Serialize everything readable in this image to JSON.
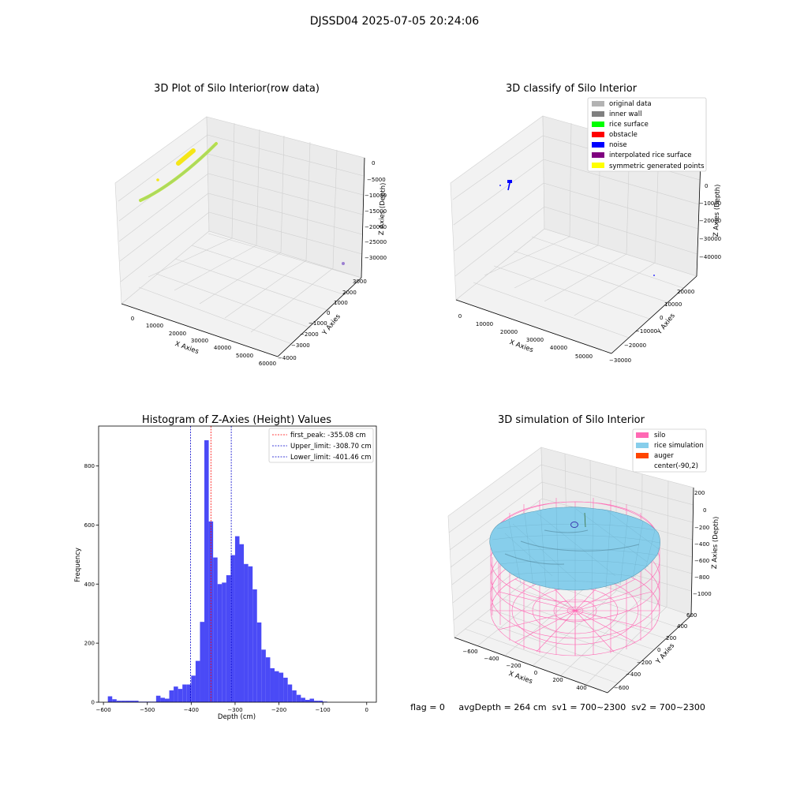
{
  "figure": {
    "suptitle": "DJSSD04 2025-07-05 20:24:06",
    "footer": "flag = 0     avgDepth = 264 cm  sv1 = 700~2300  sv2 = 700~2300"
  },
  "chart_data": [
    {
      "type": "scatter",
      "title": "3D Plot of Silo Interior(row data)",
      "xlabel": "X Axies",
      "ylabel": "Y Axies",
      "zlabel": "Z Axies (Depth)",
      "x_ticks": [
        "0",
        "10000",
        "20000",
        "30000",
        "40000",
        "50000",
        "60000"
      ],
      "y_ticks": [
        "3000",
        "2000",
        "1000",
        "0",
        "−1000",
        "−2000",
        "−3000",
        "−4000"
      ],
      "z_ticks": [
        "0",
        "−5000",
        "−10000",
        "−15000",
        "−20000",
        "−25000",
        "−30000"
      ],
      "colors": {
        "band": "#b8e04a",
        "band_dark": "#9ad07a",
        "cluster": "#f5e617",
        "outlier": "#9b7fd1"
      }
    },
    {
      "type": "scatter",
      "title": "3D classify of Silo Interior",
      "xlabel": "X Axies",
      "ylabel": "Y Axies",
      "zlabel": "Z Axies (Depth)",
      "x_ticks": [
        "0",
        "10000",
        "20000",
        "30000",
        "40000",
        "50000"
      ],
      "y_ticks": [
        "20000",
        "10000",
        "0",
        "−10000",
        "−20000",
        "−30000"
      ],
      "z_ticks": [
        "0",
        "−10000",
        "−20000",
        "−30000",
        "−40000"
      ],
      "legend": [
        {
          "label": "original data",
          "color": "#b3b3b3"
        },
        {
          "label": "inner wall",
          "color": "#808080"
        },
        {
          "label": "rice surface",
          "color": "#00ff00"
        },
        {
          "label": "obstacle",
          "color": "#ff0000"
        },
        {
          "label": "noise",
          "color": "#0000ff"
        },
        {
          "label": "interpolated rice surface",
          "color": "#800080"
        },
        {
          "label": "symmetric generated points",
          "color": "#ffff00"
        }
      ]
    },
    {
      "type": "bar",
      "title": "Histogram of Z-Axies (Height) Values",
      "xlabel": "Depth (cm)",
      "ylabel": "Frequency",
      "xlim": [
        -611,
        22
      ],
      "ylim": [
        0,
        935
      ],
      "x_ticks": [
        -600,
        -500,
        -400,
        -300,
        -200,
        -100,
        0
      ],
      "y_ticks": [
        0,
        200,
        400,
        600,
        800
      ],
      "bar_color": "#4a4af6",
      "bins": [
        [
          -590,
          -580,
          20
        ],
        [
          -580,
          -570,
          10
        ],
        [
          -570,
          -560,
          5
        ],
        [
          -560,
          -550,
          5
        ],
        [
          -550,
          -540,
          5
        ],
        [
          -540,
          -530,
          5
        ],
        [
          -530,
          -520,
          5
        ],
        [
          -520,
          -510,
          2
        ],
        [
          -510,
          -500,
          2
        ],
        [
          -500,
          -490,
          2
        ],
        [
          -490,
          -480,
          2
        ],
        [
          -480,
          -470,
          22
        ],
        [
          -470,
          -460,
          15
        ],
        [
          -460,
          -450,
          12
        ],
        [
          -450,
          -440,
          40
        ],
        [
          -440,
          -430,
          53
        ],
        [
          -430,
          -420,
          45
        ],
        [
          -420,
          -410,
          60
        ],
        [
          -410,
          -400,
          60
        ],
        [
          -400,
          -390,
          90
        ],
        [
          -390,
          -380,
          140
        ],
        [
          -380,
          -370,
          272
        ],
        [
          -370,
          -360,
          887
        ],
        [
          -360,
          -350,
          612
        ],
        [
          -350,
          -340,
          490
        ],
        [
          -340,
          -330,
          400
        ],
        [
          -330,
          -320,
          405
        ],
        [
          -320,
          -310,
          430
        ],
        [
          -310,
          -300,
          498
        ],
        [
          -300,
          -290,
          562
        ],
        [
          -290,
          -280,
          535
        ],
        [
          -280,
          -270,
          468
        ],
        [
          -270,
          -260,
          460
        ],
        [
          -260,
          -250,
          382
        ],
        [
          -250,
          -240,
          270
        ],
        [
          -240,
          -230,
          178
        ],
        [
          -230,
          -220,
          152
        ],
        [
          -220,
          -210,
          115
        ],
        [
          -210,
          -200,
          105
        ],
        [
          -200,
          -190,
          100
        ],
        [
          -190,
          -180,
          83
        ],
        [
          -180,
          -170,
          60
        ],
        [
          -170,
          -160,
          40
        ],
        [
          -160,
          -150,
          25
        ],
        [
          -150,
          -140,
          15
        ],
        [
          -140,
          -130,
          8
        ],
        [
          -130,
          -120,
          12
        ],
        [
          -120,
          -110,
          5
        ],
        [
          -110,
          -100,
          5
        ],
        [
          -100,
          -90,
          2
        ]
      ],
      "vlines": [
        {
          "name": "first_peak: -355.08 cm",
          "x": -355.08,
          "color": "#ff0000"
        },
        {
          "name": "Upper_limit: -308.70 cm",
          "x": -308.7,
          "color": "#0000cc"
        },
        {
          "name": "Lower_limit: -401.46 cm",
          "x": -401.46,
          "color": "#0000cc"
        }
      ]
    },
    {
      "type": "surface",
      "title": "3D simulation of Silo Interior",
      "xlabel": "X Axies",
      "ylabel": "Y Axies",
      "zlabel": "Z Axies (Depth)",
      "x_ticks": [
        "−600",
        "−400",
        "−200",
        "0",
        "200",
        "400"
      ],
      "y_ticks": [
        "600",
        "400",
        "200",
        "0",
        "−200",
        "−400",
        "−600"
      ],
      "z_ticks": [
        "200",
        "0",
        "−200",
        "−400",
        "−600",
        "−800",
        "−1000"
      ],
      "legend": [
        {
          "label": "silo",
          "color": "#ff69b4"
        },
        {
          "label": "rice simulation",
          "color": "#87ceeb"
        },
        {
          "label": "auger",
          "color": "#ff4500"
        },
        {
          "label": "center(-90,2)",
          "color": "#ffffff"
        }
      ]
    }
  ]
}
